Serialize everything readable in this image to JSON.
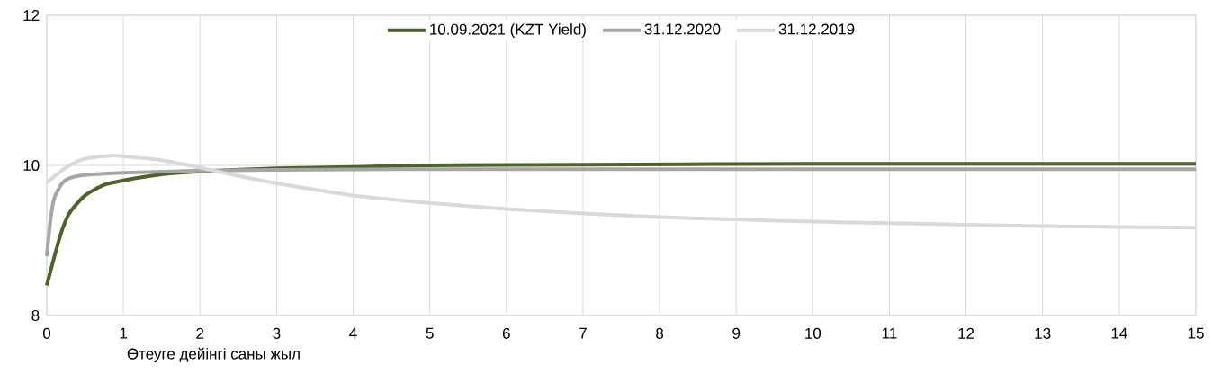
{
  "chart_data": {
    "type": "line",
    "xlabel": "Өтеуге дейінгі саны жыл",
    "xlim": [
      0,
      15
    ],
    "xticks": [
      0,
      1,
      2,
      3,
      4,
      5,
      6,
      7,
      8,
      9,
      10,
      11,
      12,
      13,
      14,
      15
    ],
    "ylim": [
      8,
      12
    ],
    "yticks": [
      8,
      10,
      12
    ],
    "grid": true,
    "legend": "top",
    "marker": "none",
    "line_style": "solid",
    "series": [
      {
        "name": "10.09.2021 (KZT Yield)",
        "color": "#4f6228",
        "x": [
          0,
          0.1,
          0.2,
          0.3,
          0.5,
          0.75,
          1,
          1.5,
          2,
          3,
          4,
          5,
          7,
          10,
          15
        ],
        "values": [
          8.4,
          8.79,
          9.14,
          9.37,
          9.6,
          9.74,
          9.8,
          9.88,
          9.92,
          9.96,
          9.98,
          10.0,
          10.01,
          10.02,
          10.02
        ]
      },
      {
        "name": "31.12.2020",
        "color": "#a6a6a6",
        "x": [
          0,
          0.05,
          0.1,
          0.2,
          0.3,
          0.5,
          1,
          2,
          3,
          5,
          10,
          15
        ],
        "values": [
          8.79,
          9.29,
          9.57,
          9.76,
          9.83,
          9.87,
          9.9,
          9.93,
          9.94,
          9.95,
          9.95,
          9.95
        ]
      },
      {
        "name": "31.12.2019",
        "color": "#d9d9d9",
        "x": [
          0,
          0.25,
          0.5,
          0.85,
          1,
          1.5,
          2,
          2.5,
          3,
          4,
          5,
          6,
          7,
          8,
          9,
          10,
          11,
          12,
          13,
          14,
          15
        ],
        "values": [
          9.77,
          9.97,
          10.09,
          10.13,
          10.12,
          10.07,
          9.97,
          9.86,
          9.76,
          9.6,
          9.5,
          9.42,
          9.36,
          9.31,
          9.28,
          9.25,
          9.23,
          9.21,
          9.19,
          9.18,
          9.17
        ]
      }
    ]
  }
}
